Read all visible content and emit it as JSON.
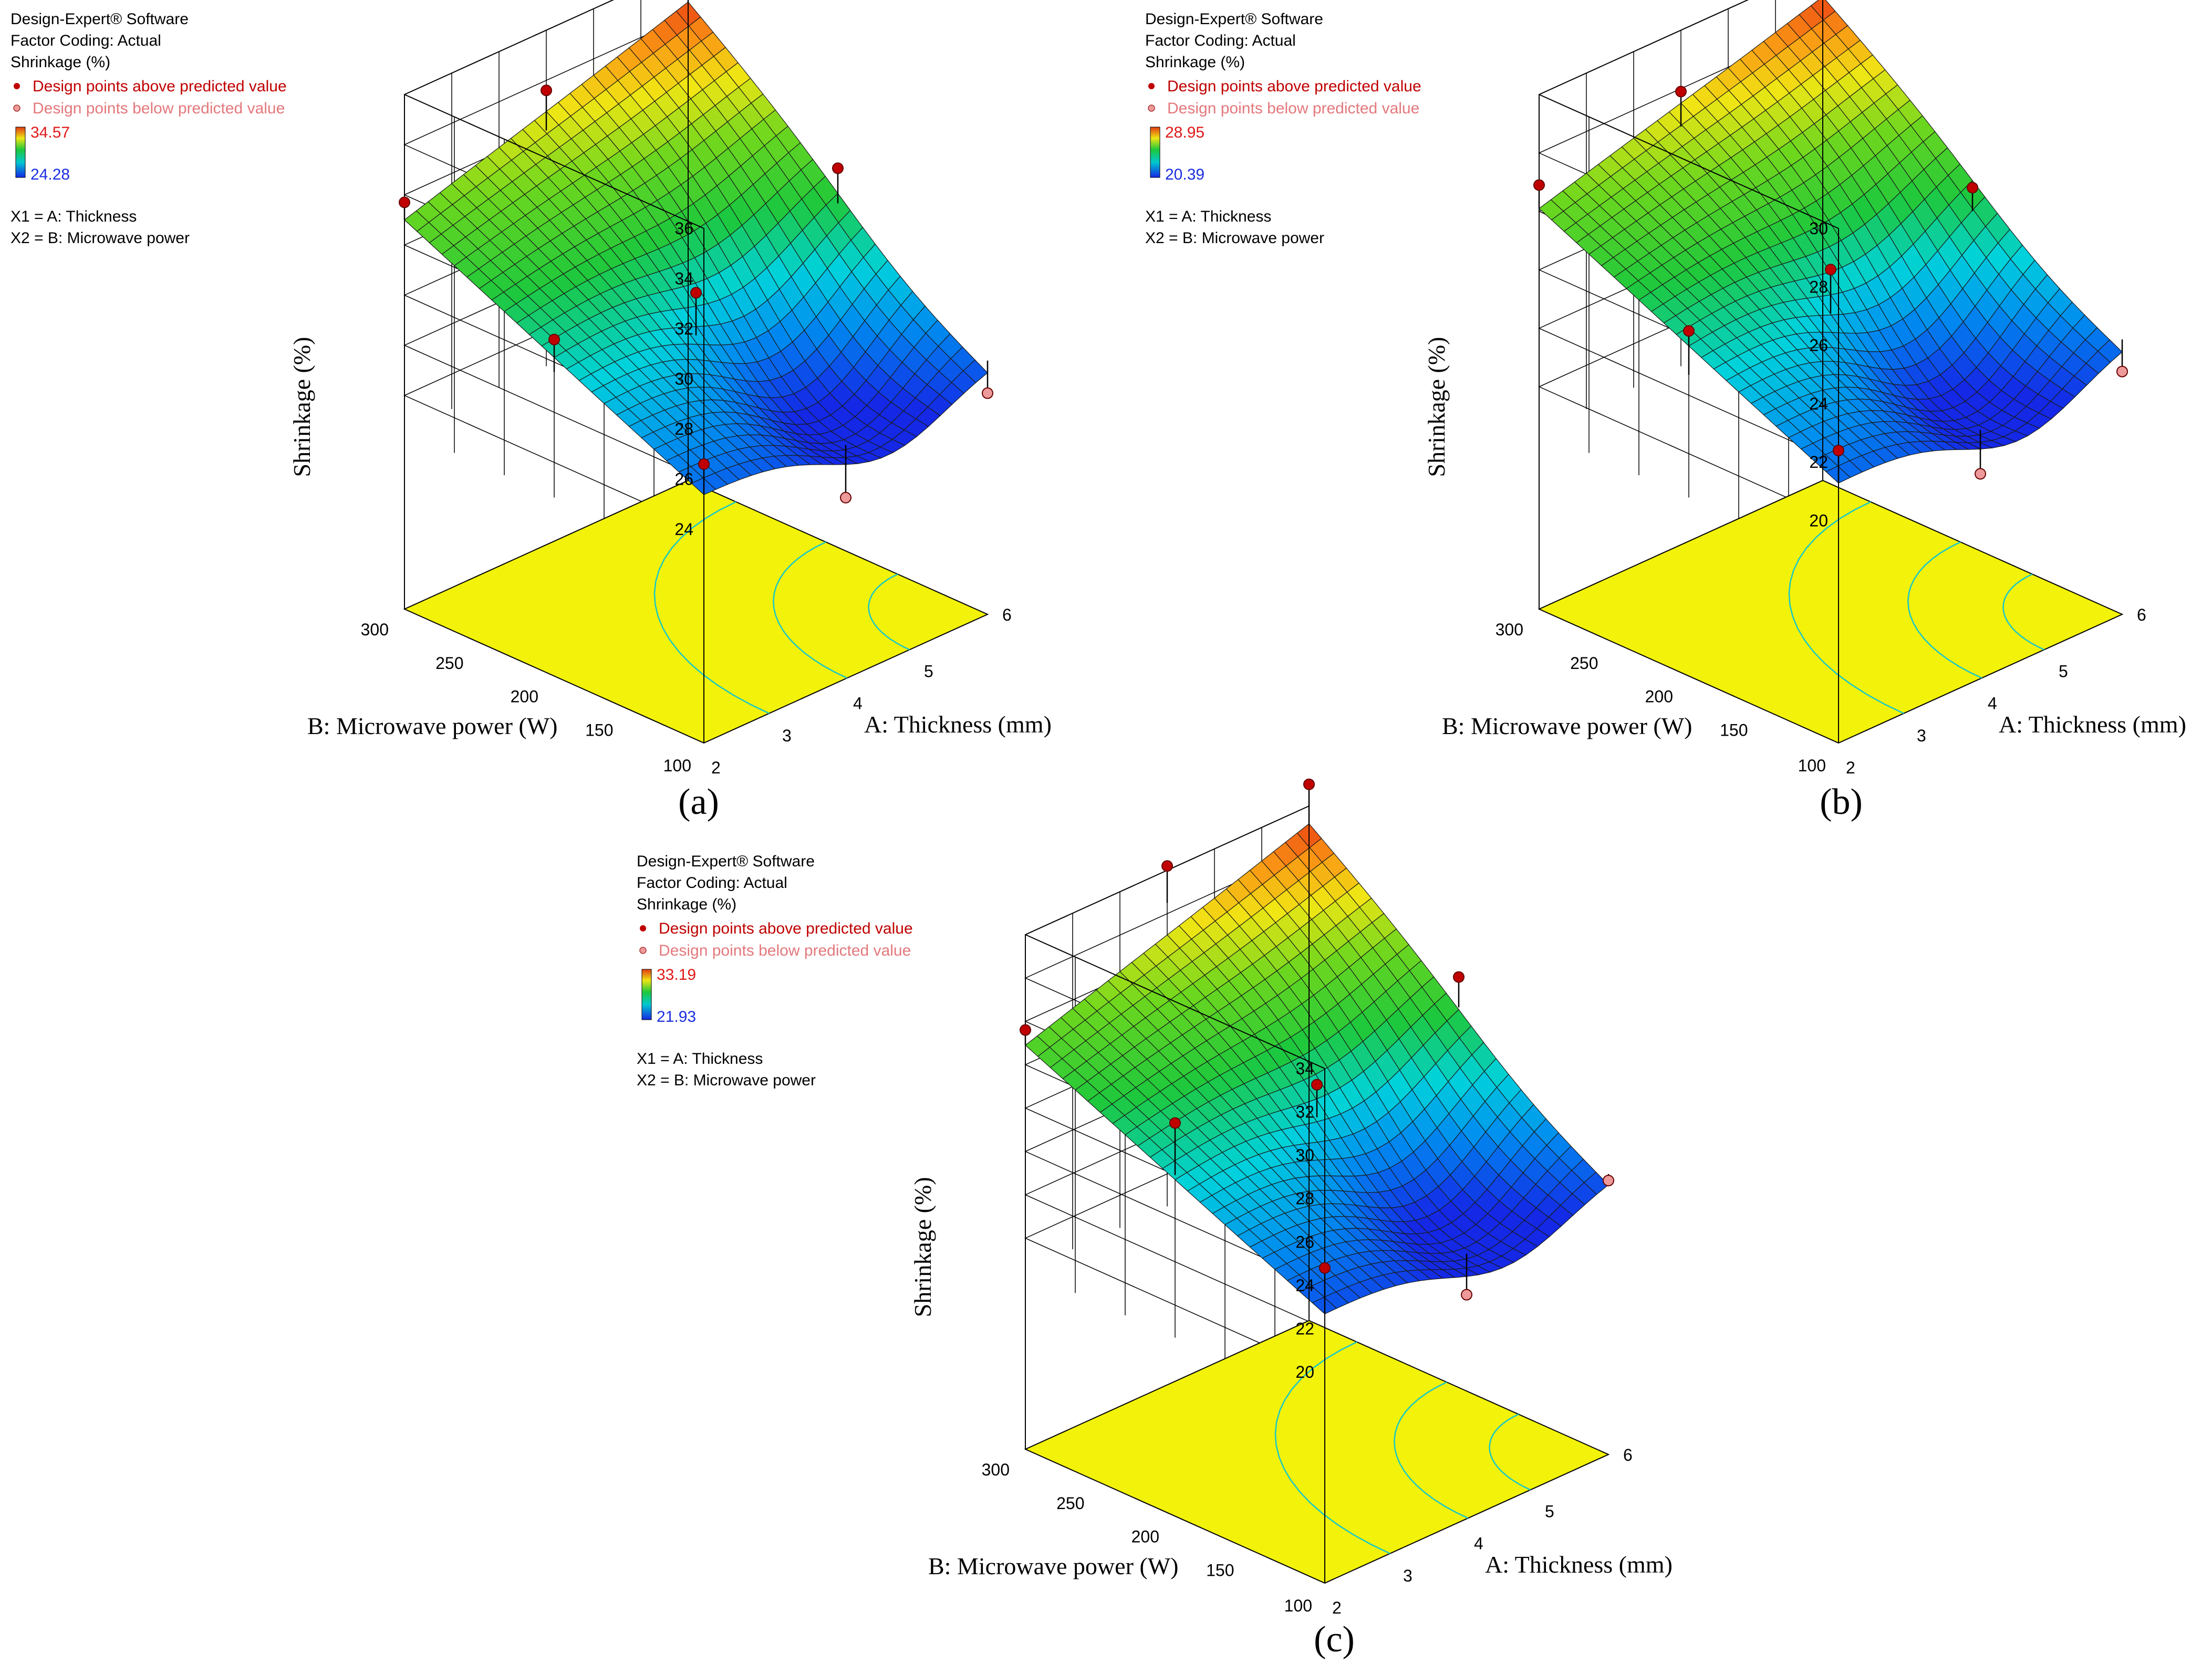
{
  "chart_data": [
    {
      "type": "surface",
      "caption": "(a)",
      "software": "Design-Expert® Software",
      "factor_coding": "Factor Coding: Actual",
      "response": "Shrinkage (%)",
      "legend_above": "Design points above predicted value",
      "legend_below": "Design points below predicted value",
      "scale_max": "34.57",
      "scale_min": "24.28",
      "x1_label": "X1 = A: Thickness",
      "x2_label": "X2 = B: Microwave power",
      "xlabel": "A: Thickness (mm)",
      "ylabel": "B: Microwave power (W)",
      "zlabel": "Shrinkage (%)",
      "a_ticks": [
        "2",
        "3",
        "4",
        "5",
        "6"
      ],
      "b_ticks": [
        "100",
        "150",
        "200",
        "250",
        "300"
      ],
      "z_ticks": [
        "24",
        "26",
        "28",
        "30",
        "32",
        "34",
        "36"
      ],
      "z_tick_values": [
        24,
        26,
        28,
        30,
        32,
        34,
        36
      ],
      "zlim": [
        22.6,
        36
      ],
      "color_range": [
        24.28,
        34.57
      ],
      "corner_values": {
        "a2_b100": 25.4,
        "a6_b100": 25.6,
        "a2_b300": 31.0,
        "a6_b300": 34.57
      },
      "min_point": {
        "a": 4.6,
        "b": 150,
        "z": 24.28
      },
      "design_points": [
        {
          "a": 2,
          "b": 100,
          "z": 26.6,
          "pred": 25.4
        },
        {
          "a": 2,
          "b": 200,
          "z": 28.9,
          "pred": 27.6
        },
        {
          "a": 2,
          "b": 300,
          "z": 31.7,
          "pred": 31.0
        },
        {
          "a": 4,
          "b": 100,
          "z": 22.7,
          "pred": 24.8
        },
        {
          "a": 4,
          "b": 200,
          "z": 28.2,
          "pred": 26.5
        },
        {
          "a": 4,
          "b": 300,
          "z": 33.6,
          "pred": 32.0
        },
        {
          "a": 6,
          "b": 100,
          "z": 24.3,
          "pred": 25.6
        },
        {
          "a": 6,
          "b": 200,
          "z": 30.6,
          "pred": 29.2
        },
        {
          "a": 6,
          "b": 300,
          "z": 35.5,
          "pred": 34.57
        }
      ]
    },
    {
      "type": "surface",
      "caption": "(b)",
      "software": "Design-Expert® Software",
      "factor_coding": "Factor Coding: Actual",
      "response": "Shrinkage (%)",
      "legend_above": "Design points above predicted value",
      "legend_below": "Design points below predicted value",
      "scale_max": "28.95",
      "scale_min": "20.39",
      "x1_label": "X1 = A: Thickness",
      "x2_label": "X2 = B: Microwave power",
      "xlabel": "A: Thickness (mm)",
      "ylabel": "B: Microwave power (W)",
      "zlabel": "Shrinkage (%)",
      "a_ticks": [
        "2",
        "3",
        "4",
        "5",
        "6"
      ],
      "b_ticks": [
        "100",
        "150",
        "200",
        "250",
        "300"
      ],
      "z_ticks": [
        "20",
        "22",
        "24",
        "26",
        "28",
        "30"
      ],
      "z_tick_values": [
        20,
        22,
        24,
        26,
        28,
        30
      ],
      "zlim": [
        18.5,
        30
      ],
      "color_range": [
        20.39,
        28.95
      ],
      "corner_values": {
        "a2_b100": 21.3,
        "a6_b100": 21.8,
        "a2_b300": 26.1,
        "a6_b300": 28.95
      },
      "min_point": {
        "a": 4.6,
        "b": 150,
        "z": 20.39
      },
      "design_points": [
        {
          "a": 2,
          "b": 100,
          "z": 22.4,
          "pred": 21.3
        },
        {
          "a": 2,
          "b": 200,
          "z": 24.2,
          "pred": 22.7
        },
        {
          "a": 2,
          "b": 300,
          "z": 26.9,
          "pred": 26.1
        },
        {
          "a": 4,
          "b": 100,
          "z": 19.4,
          "pred": 20.9
        },
        {
          "a": 4,
          "b": 200,
          "z": 24.1,
          "pred": 22.6
        },
        {
          "a": 4,
          "b": 300,
          "z": 27.9,
          "pred": 26.7
        },
        {
          "a": 6,
          "b": 100,
          "z": 20.7,
          "pred": 21.8
        },
        {
          "a": 6,
          "b": 200,
          "z": 24.7,
          "pred": 23.9
        },
        {
          "a": 6,
          "b": 300,
          "z": 29.8,
          "pred": 28.95
        }
      ]
    },
    {
      "type": "surface",
      "caption": "(c)",
      "software": "Design-Expert® Software",
      "factor_coding": "Factor Coding: Actual",
      "response": "Shrinkage (%)",
      "legend_above": "Design points above predicted value",
      "legend_below": "Design points below predicted value",
      "scale_max": "33.19",
      "scale_min": "21.93",
      "x1_label": "X1 = A: Thickness",
      "x2_label": "X2 = B: Microwave power",
      "xlabel": "A: Thickness (mm)",
      "ylabel": "B: Microwave power (W)",
      "zlabel": "Shrinkage (%)",
      "a_ticks": [
        "2",
        "3",
        "4",
        "5",
        "6"
      ],
      "b_ticks": [
        "100",
        "150",
        "200",
        "250",
        "300"
      ],
      "z_ticks": [
        "20",
        "22",
        "24",
        "26",
        "28",
        "30",
        "32",
        "34"
      ],
      "z_tick_values": [
        20,
        22,
        24,
        26,
        28,
        30,
        32,
        34
      ],
      "zlim": [
        18.5,
        34
      ],
      "color_range": [
        21.93,
        33.19
      ],
      "corner_values": {
        "a2_b100": 22.7,
        "a6_b100": 23.2,
        "a2_b300": 28.9,
        "a6_b300": 33.19
      },
      "min_point": {
        "a": 4.6,
        "b": 150,
        "z": 21.93
      },
      "design_points": [
        {
          "a": 2,
          "b": 100,
          "z": 24.8,
          "pred": 22.7
        },
        {
          "a": 2,
          "b": 200,
          "z": 28.4,
          "pred": 26.0
        },
        {
          "a": 2,
          "b": 300,
          "z": 29.6,
          "pred": 28.9
        },
        {
          "a": 4,
          "b": 100,
          "z": 20.6,
          "pred": 22.5
        },
        {
          "a": 4,
          "b": 200,
          "z": 27.2,
          "pred": 25.7
        },
        {
          "a": 4,
          "b": 300,
          "z": 34.2,
          "pred": 32.5
        },
        {
          "a": 6,
          "b": 100,
          "z": 22.9,
          "pred": 23.2
        },
        {
          "a": 6,
          "b": 200,
          "z": 29.2,
          "pred": 27.8
        },
        {
          "a": 6,
          "b": 300,
          "z": 35.0,
          "pred": 33.19
        }
      ]
    }
  ]
}
